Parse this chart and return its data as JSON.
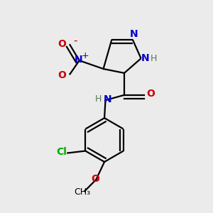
{
  "bg_color": "#ebebeb",
  "bond_color": "#000000",
  "bond_width": 1.6,
  "colors": {
    "N": "#0000cc",
    "O": "#cc0000",
    "C": "#000000",
    "Cl": "#00aa00",
    "H": "#557755"
  }
}
